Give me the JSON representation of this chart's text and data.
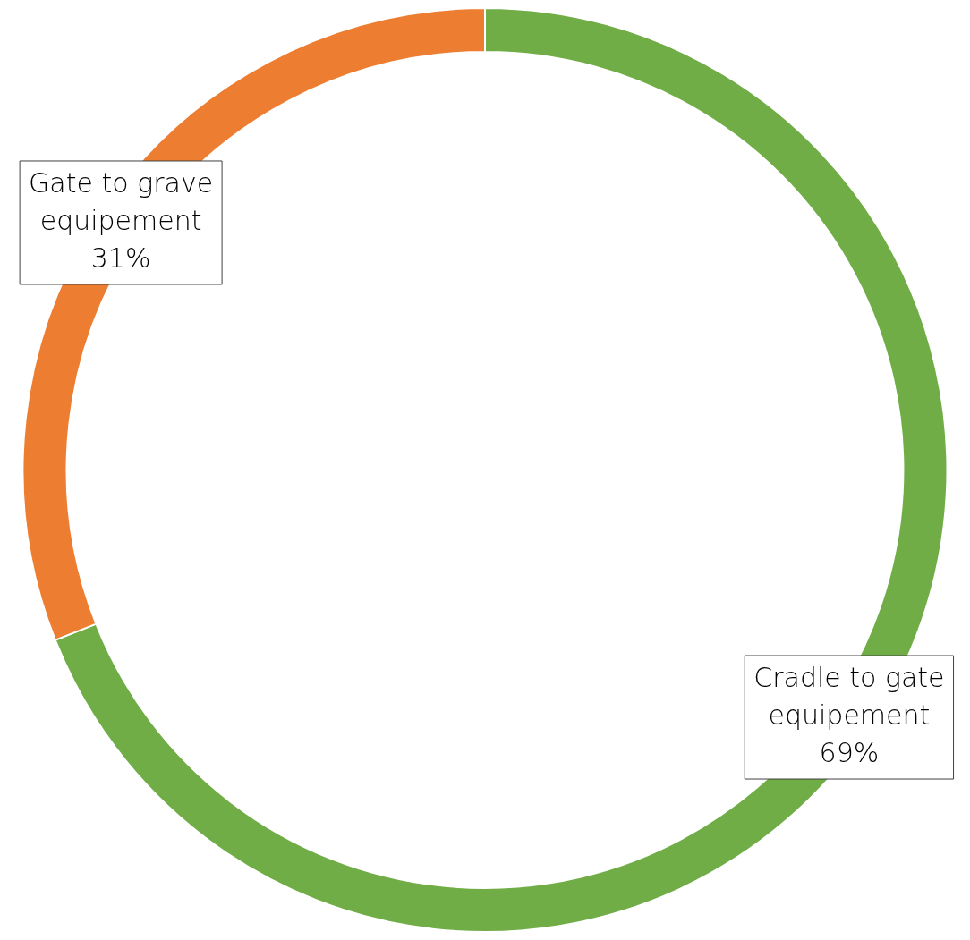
{
  "chart_data": {
    "type": "donut",
    "categories": [
      "Cradle to gate equipement",
      "Gate to grave equipement"
    ],
    "values": [
      69,
      31
    ],
    "colors": [
      "#70ad47",
      "#ed7d31"
    ],
    "value_labels": [
      "69%",
      "31%"
    ],
    "legend": false
  }
}
